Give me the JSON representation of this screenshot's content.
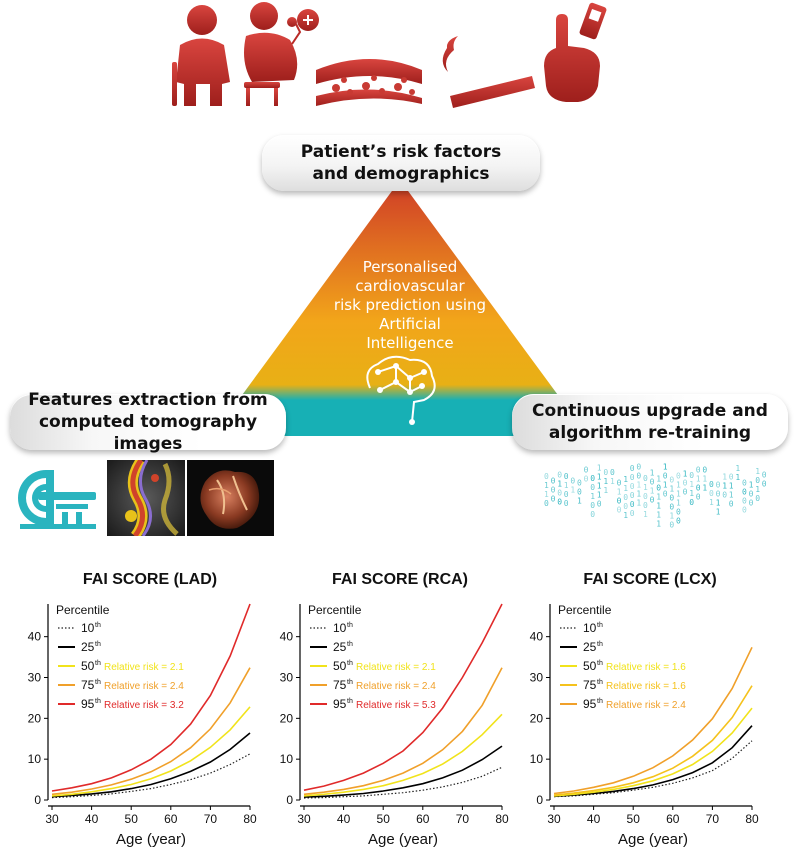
{
  "diagram": {
    "top_box": {
      "line1": "Patient’s risk factors",
      "line2": "and demographics"
    },
    "center": {
      "line1": "Personalised",
      "line2": "cardiovascular",
      "line3": "risk prediction using",
      "line4": "Artificial",
      "line5": "Intelligence"
    },
    "left_box": {
      "line1": "Features extraction from",
      "line2": "computed tomography images"
    },
    "right_box": {
      "line1": "Continuous upgrade and",
      "line2": "algorithm re-training"
    },
    "colors": {
      "risk_red": "#b92b27",
      "triangle_top": "#cf3c27",
      "triangle_mid": "#f2a51a",
      "triangle_bottom": "#17b0b5",
      "teal": "#2ab4bf"
    },
    "icons": [
      "elderly-woman-icon",
      "obese-person-blood-pressure-icon",
      "artery-plaque-icon",
      "cigarette-icon",
      "glucose-meter-icon",
      "ai-brain-icon",
      "ct-scanner-icon",
      "binary-data-icon"
    ]
  },
  "chart_data": [
    {
      "type": "line",
      "title": "FAI SCORE (LAD)",
      "xlabel": "Age (year)",
      "ylabel": "",
      "xlim": [
        30,
        80
      ],
      "ylim": [
        0,
        48
      ],
      "xticks": [
        30,
        40,
        50,
        60,
        70,
        80
      ],
      "yticks": [
        0,
        10,
        20,
        30,
        40
      ],
      "legend_title": "Percentile",
      "x": [
        30,
        35,
        40,
        45,
        50,
        55,
        60,
        65,
        70,
        75,
        80
      ],
      "series": [
        {
          "name": "10",
          "sup": "th",
          "rr": "",
          "color": "#222222",
          "dashed": true,
          "values": [
            0.6,
            0.8,
            1.1,
            1.5,
            2.1,
            2.8,
            3.8,
            5.0,
            6.6,
            8.7,
            11.3
          ]
        },
        {
          "name": "25",
          "sup": "th",
          "rr": "",
          "color": "#000000",
          "dashed": false,
          "values": [
            0.8,
            1.1,
            1.5,
            2.0,
            2.8,
            3.8,
            5.2,
            7.0,
            9.3,
            12.4,
            16.4
          ]
        },
        {
          "name": "50",
          "sup": "th",
          "rr": "Relative risk = 2.1",
          "color": "#f1e31b",
          "dashed": false,
          "values": [
            1.0,
            1.4,
            2.0,
            2.8,
            3.8,
            5.2,
            7.1,
            9.6,
            12.9,
            17.2,
            22.8
          ]
        },
        {
          "name": "75",
          "sup": "th",
          "rr": "Relative risk = 2.4",
          "color": "#f0a02a",
          "dashed": false,
          "values": [
            1.4,
            1.9,
            2.7,
            3.7,
            5.1,
            6.9,
            9.4,
            12.8,
            17.4,
            23.8,
            32.4
          ]
        },
        {
          "name": "95",
          "sup": "th",
          "rr": "Relative risk = 3.2",
          "color": "#e02a2a",
          "dashed": false,
          "values": [
            2.2,
            3.0,
            4.0,
            5.4,
            7.4,
            10.0,
            13.6,
            18.6,
            25.6,
            35.3,
            48.0
          ]
        }
      ]
    },
    {
      "type": "line",
      "title": "FAI SCORE (RCA)",
      "xlabel": "Age (year)",
      "ylabel": "",
      "xlim": [
        30,
        80
      ],
      "ylim": [
        0,
        48
      ],
      "xticks": [
        30,
        40,
        50,
        60,
        70,
        80
      ],
      "yticks": [
        0,
        10,
        20,
        30,
        40
      ],
      "legend_title": "Percentile",
      "x": [
        30,
        35,
        40,
        45,
        50,
        55,
        60,
        65,
        70,
        75,
        80
      ],
      "series": [
        {
          "name": "10",
          "sup": "th",
          "rr": "",
          "color": "#222222",
          "dashed": true,
          "values": [
            0.5,
            0.6,
            0.8,
            1.0,
            1.4,
            1.8,
            2.4,
            3.2,
            4.3,
            5.8,
            8.0
          ]
        },
        {
          "name": "25",
          "sup": "th",
          "rr": "",
          "color": "#000000",
          "dashed": false,
          "values": [
            0.7,
            0.9,
            1.2,
            1.6,
            2.2,
            3.0,
            4.0,
            5.4,
            7.3,
            9.9,
            13.2
          ]
        },
        {
          "name": "50",
          "sup": "th",
          "rr": "Relative risk = 2.1",
          "color": "#f1e31b",
          "dashed": false,
          "values": [
            1.0,
            1.4,
            1.9,
            2.6,
            3.5,
            4.8,
            6.5,
            8.8,
            11.9,
            16.0,
            21.0
          ]
        },
        {
          "name": "75",
          "sup": "th",
          "rr": "Relative risk = 2.4",
          "color": "#f0a02a",
          "dashed": false,
          "values": [
            1.4,
            1.9,
            2.6,
            3.5,
            4.8,
            6.6,
            9.0,
            12.3,
            16.8,
            23.2,
            32.4
          ]
        },
        {
          "name": "95",
          "sup": "th",
          "rr": "Relative risk = 5.3",
          "color": "#e02a2a",
          "dashed": false,
          "values": [
            2.4,
            3.4,
            4.8,
            6.6,
            9.0,
            12.0,
            16.5,
            22.5,
            30.0,
            38.5,
            48.0
          ]
        }
      ]
    },
    {
      "type": "line",
      "title": "FAI SCORE (LCX)",
      "xlabel": "Age (year)",
      "ylabel": "",
      "xlim": [
        30,
        80
      ],
      "ylim": [
        0,
        48
      ],
      "xticks": [
        30,
        40,
        50,
        60,
        70,
        80
      ],
      "yticks": [
        0,
        10,
        20,
        30,
        40
      ],
      "legend_title": "Percentile",
      "x": [
        30,
        35,
        40,
        45,
        50,
        55,
        60,
        65,
        70,
        75,
        80
      ],
      "series": [
        {
          "name": "10",
          "sup": "th",
          "rr": "",
          "color": "#222222",
          "dashed": true,
          "values": [
            0.8,
            1.0,
            1.4,
            1.8,
            2.4,
            3.1,
            4.1,
            5.4,
            7.2,
            10.2,
            14.5
          ]
        },
        {
          "name": "25",
          "sup": "th",
          "rr": "",
          "color": "#000000",
          "dashed": false,
          "values": [
            0.9,
            1.2,
            1.6,
            2.1,
            2.8,
            3.7,
            5.0,
            6.7,
            9.1,
            12.8,
            18.2
          ]
        },
        {
          "name": "50",
          "sup": "th",
          "rr": "Relative risk = 1.6",
          "color": "#f1e31b",
          "dashed": false,
          "values": [
            1.0,
            1.4,
            1.9,
            2.6,
            3.5,
            4.7,
            6.4,
            8.7,
            11.9,
            16.4,
            22.5
          ]
        },
        {
          "name": "75",
          "sup": "th",
          "rr": "Relative risk = 1.6",
          "color": "#f5c21c",
          "dashed": false,
          "values": [
            1.2,
            1.7,
            2.3,
            3.1,
            4.2,
            5.7,
            7.8,
            10.7,
            14.6,
            20.2,
            28.0
          ]
        },
        {
          "name": "95",
          "sup": "th",
          "rr": "Relative risk = 2.4",
          "color": "#f0a02a",
          "dashed": false,
          "values": [
            1.6,
            2.2,
            3.1,
            4.2,
            5.8,
            7.9,
            10.8,
            14.7,
            19.9,
            27.3,
            37.4
          ]
        }
      ]
    }
  ]
}
